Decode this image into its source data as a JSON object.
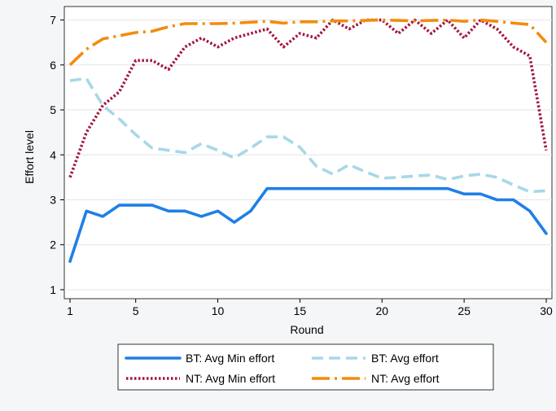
{
  "chart_data": {
    "type": "line",
    "xlabel": "Round",
    "ylabel": "Effort level",
    "xlim": [
      1,
      30
    ],
    "ylim": [
      1,
      7
    ],
    "x": [
      1,
      2,
      3,
      4,
      5,
      6,
      7,
      8,
      9,
      10,
      11,
      12,
      13,
      14,
      15,
      16,
      17,
      18,
      19,
      20,
      21,
      22,
      23,
      24,
      25,
      26,
      27,
      28,
      29,
      30
    ],
    "xticks": [
      1,
      5,
      10,
      15,
      20,
      25,
      30
    ],
    "yticks": [
      1,
      2,
      3,
      4,
      5,
      6,
      7
    ],
    "grid": "horizontal",
    "legend_position": "bottom",
    "series": [
      {
        "name": "BT: Avg Min effort",
        "color": "#1f7fe6",
        "dash": "solid",
        "values": [
          1.63,
          2.75,
          2.63,
          2.88,
          2.88,
          2.88,
          2.75,
          2.75,
          2.63,
          2.75,
          2.5,
          2.75,
          3.25,
          3.25,
          3.25,
          3.25,
          3.25,
          3.25,
          3.25,
          3.25,
          3.25,
          3.25,
          3.25,
          3.25,
          3.13,
          3.13,
          3.0,
          3.0,
          2.75,
          2.25
        ]
      },
      {
        "name": "BT: Avg effort",
        "color": "#a7d8e8",
        "dash": "dashed",
        "values": [
          5.65,
          5.7,
          5.1,
          4.8,
          4.45,
          4.15,
          4.1,
          4.05,
          4.25,
          4.1,
          3.93,
          4.15,
          4.4,
          4.4,
          4.17,
          3.75,
          3.57,
          3.78,
          3.62,
          3.48,
          3.5,
          3.53,
          3.55,
          3.45,
          3.53,
          3.57,
          3.5,
          3.33,
          3.18,
          3.2
        ]
      },
      {
        "name": "NT: Avg Min effort",
        "color": "#a3163c",
        "dash": "dotted",
        "values": [
          3.5,
          4.5,
          5.1,
          5.4,
          6.1,
          6.1,
          5.9,
          6.4,
          6.6,
          6.4,
          6.6,
          6.7,
          6.8,
          6.4,
          6.7,
          6.6,
          7.0,
          6.8,
          7.0,
          7.0,
          6.7,
          7.0,
          6.7,
          7.0,
          6.6,
          7.0,
          6.8,
          6.4,
          6.2,
          4.1
        ]
      },
      {
        "name": "NT: Avg effort",
        "color": "#f28c0e",
        "dash": "dashdot",
        "values": [
          6.0,
          6.35,
          6.58,
          6.65,
          6.72,
          6.75,
          6.85,
          6.92,
          6.92,
          6.92,
          6.93,
          6.95,
          6.97,
          6.93,
          6.96,
          6.96,
          6.98,
          6.98,
          6.99,
          7.0,
          6.99,
          6.98,
          6.99,
          7.0,
          6.97,
          7.0,
          6.97,
          6.93,
          6.9,
          6.5
        ]
      }
    ]
  }
}
